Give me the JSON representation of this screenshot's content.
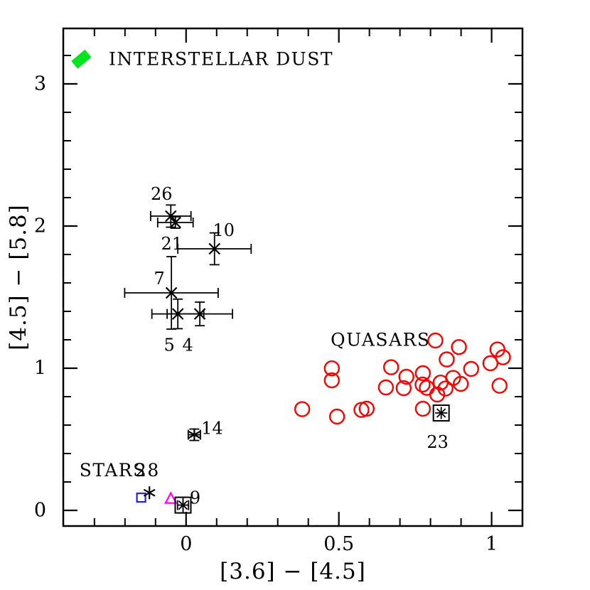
{
  "chart_data": {
    "type": "scatter",
    "title": "",
    "xlabel": "[3.6]  −  [4.5]",
    "ylabel": "[4.5]  −  [5.8]",
    "xlim": [
      -0.402,
      1.101
    ],
    "ylim": [
      -0.11,
      3.39
    ],
    "grid": false,
    "legend_position": "none",
    "x_major_ticks": [
      0,
      0.5,
      1
    ],
    "x_tick_labels": [
      "0",
      "0.5",
      "1"
    ],
    "x_minor_step": 0.1,
    "y_major_ticks": [
      0,
      1,
      2,
      3
    ],
    "y_tick_labels": [
      "0",
      "1",
      "2",
      "3"
    ],
    "y_minor_step": 0.2,
    "colors": {
      "quasars": "#ff0000",
      "stars": "#2020ff",
      "dust": "#00e51e",
      "triangle": "#ff00ff",
      "sources": "#000000"
    },
    "annotations": [
      {
        "name": "interstellar-dust-label",
        "text": "INTERSTELLAR DUST",
        "x": -0.253,
        "y": 3.175,
        "color": "#000000"
      },
      {
        "name": "quasars-label",
        "text": "QUASARS",
        "x": 0.473,
        "y": 1.2,
        "color": "#ff0000"
      },
      {
        "name": "stars-label",
        "text": "STARS",
        "x": -0.349,
        "y": 0.282,
        "color": "#2020ff"
      },
      {
        "name": "star-28-number",
        "text": "28",
        "x": -0.167,
        "y": 0.282,
        "color": "#000000"
      }
    ],
    "series": [
      {
        "name": "interstellar-dust",
        "marker": "filled-diamond",
        "color": "#00e51e",
        "points": [
          {
            "x": -0.343,
            "y": 3.174
          }
        ]
      },
      {
        "name": "quasars",
        "marker": "open-circle",
        "color": "#ff0000",
        "points": [
          {
            "x": 0.816,
            "y": 1.195
          },
          {
            "x": 0.893,
            "y": 1.149
          },
          {
            "x": 1.019,
            "y": 1.132
          },
          {
            "x": 1.037,
            "y": 1.077
          },
          {
            "x": 0.853,
            "y": 1.062
          },
          {
            "x": 0.996,
            "y": 1.035
          },
          {
            "x": 0.671,
            "y": 1.007
          },
          {
            "x": 0.477,
            "y": 0.999
          },
          {
            "x": 0.933,
            "y": 0.995
          },
          {
            "x": 0.775,
            "y": 0.965
          },
          {
            "x": 0.721,
            "y": 0.94
          },
          {
            "x": 0.874,
            "y": 0.932
          },
          {
            "x": 0.477,
            "y": 0.915
          },
          {
            "x": 0.899,
            "y": 0.89
          },
          {
            "x": 0.774,
            "y": 0.885
          },
          {
            "x": 1.026,
            "y": 0.877
          },
          {
            "x": 0.833,
            "y": 0.899
          },
          {
            "x": 0.849,
            "y": 0.857
          },
          {
            "x": 0.788,
            "y": 0.862
          },
          {
            "x": 0.654,
            "y": 0.865
          },
          {
            "x": 0.712,
            "y": 0.86
          },
          {
            "x": 0.822,
            "y": 0.815
          },
          {
            "x": 0.775,
            "y": 0.715
          },
          {
            "x": 0.38,
            "y": 0.712
          },
          {
            "x": 0.494,
            "y": 0.66
          },
          {
            "x": 0.574,
            "y": 0.707
          },
          {
            "x": 0.591,
            "y": 0.715
          }
        ]
      },
      {
        "name": "stars-square",
        "marker": "open-square",
        "color": "#2020ff",
        "points": [
          {
            "x": -0.147,
            "y": 0.09
          }
        ]
      },
      {
        "name": "triangle-source",
        "marker": "open-triangle",
        "color": "#ff00ff",
        "points": [
          {
            "x": -0.05,
            "y": 0.082
          }
        ]
      },
      {
        "name": "numbered-sources-cross",
        "marker": "cross",
        "color": "#000000",
        "points": [
          {
            "x": -0.05,
            "y": 2.07,
            "xerr": 0.066,
            "yerr": 0.078,
            "label": "26",
            "label_dx": -13,
            "label_dy": -31
          },
          {
            "x": -0.035,
            "y": 2.025,
            "xerr": 0.058,
            "yerr": 0.04,
            "label": "21",
            "label_dx": -5,
            "label_dy": 30
          },
          {
            "x": 0.093,
            "y": 1.84,
            "xerr": 0.12,
            "yerr": 0.112,
            "label": "10",
            "label_dx": 13,
            "label_dy": -26
          },
          {
            "x": -0.048,
            "y": 1.53,
            "xerr": 0.153,
            "yerr": 0.255,
            "label": "7",
            "label_dx": -17,
            "label_dy": -20
          },
          {
            "x": -0.027,
            "y": 1.382,
            "xerr": 0.085,
            "yerr": 0.104,
            "label": "5",
            "label_dx": -12,
            "label_dy": 44
          },
          {
            "x": 0.045,
            "y": 1.382,
            "xerr": 0.107,
            "yerr": 0.083,
            "label": "4",
            "label_dx": -17,
            "label_dy": 44
          }
        ]
      },
      {
        "name": "numbered-sources-asterisk",
        "marker": "asterisk",
        "color": "#000000",
        "points": [
          {
            "x": 0.027,
            "y": 0.532,
            "xerr": 0.02,
            "yerr": 0.04,
            "label": "14",
            "label_dx": 25,
            "label_dy": -9
          },
          {
            "x": -0.12,
            "y": 0.124,
            "xerr": 0,
            "yerr": 0,
            "label": "",
            "label_dx": 0,
            "label_dy": 0
          }
        ]
      },
      {
        "name": "numbered-sources-boxed",
        "marker": "boxed-asterisk",
        "color": "#000000",
        "points": [
          {
            "x": -0.01,
            "y": 0.037,
            "xerr": 0.018,
            "yerr": 0.055,
            "label": "9",
            "label_dx": 17,
            "label_dy": -10
          },
          {
            "x": 0.835,
            "y": 0.685,
            "xerr": 0,
            "yerr": 0,
            "label": "23",
            "label_dx": -5,
            "label_dy": 41
          }
        ]
      }
    ]
  }
}
